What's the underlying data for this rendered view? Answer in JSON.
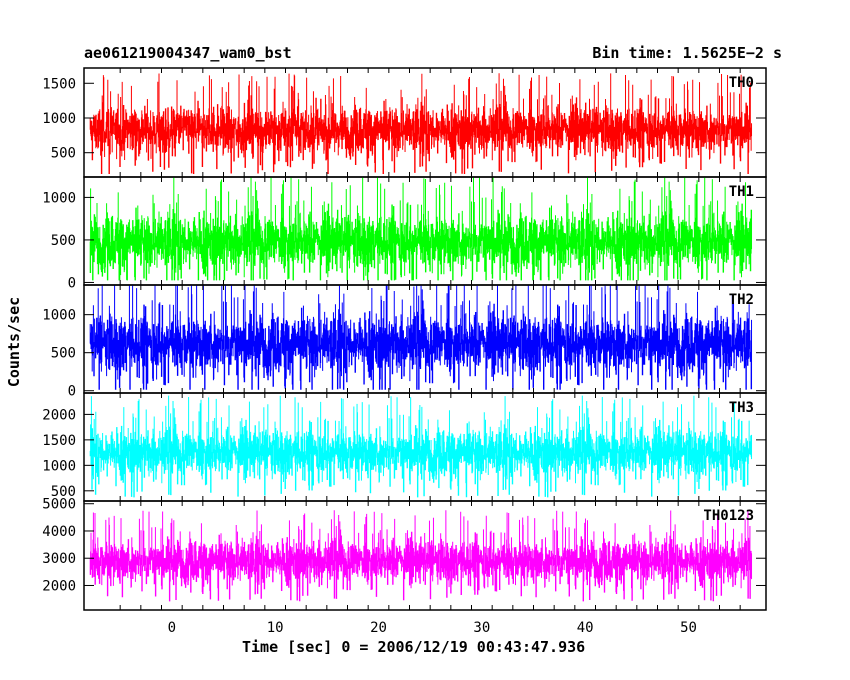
{
  "header": {
    "title": "ae061219004347_wam0_bst",
    "bin_time": "Bin time: 1.5625E−2 s"
  },
  "axes": {
    "xlabel": "Time [sec] 0 = 2006/12/19 00:43:47.936",
    "ylabel": "Counts/sec"
  },
  "chart_data": {
    "type": "line",
    "title": "ae061219004347_wam0_bst",
    "subtitle": "Bin time: 1.5625E−2 s",
    "xlabel": "Time [sec] 0 = 2006/12/19 00:43:47.936",
    "ylabel": "Counts/sec",
    "xlim": [
      -8.5,
      57.5
    ],
    "x_range_data": [
      -7.9,
      56.1
    ],
    "x_ticks": [
      0,
      10,
      20,
      30,
      40,
      50
    ],
    "grid": false,
    "panels": [
      {
        "name": "TH0",
        "color": "#ff0000",
        "ylim": [
          150,
          1720
        ],
        "yticks": [
          500,
          1000,
          1500
        ],
        "mean": 830,
        "noise": 240,
        "min_value": 200,
        "max_value": 1720
      },
      {
        "name": "TH1",
        "color": "#00ff00",
        "ylim": [
          -30,
          1240
        ],
        "yticks": [
          0,
          500,
          1000
        ],
        "mean": 480,
        "noise": 230,
        "min_value": 30,
        "max_value": 1240
      },
      {
        "name": "TH2",
        "color": "#0000ff",
        "ylim": [
          -30,
          1390
        ],
        "yticks": [
          0,
          500,
          1000
        ],
        "mean": 620,
        "noise": 270,
        "min_value": 20,
        "max_value": 1390
      },
      {
        "name": "TH3",
        "color": "#00ffff",
        "ylim": [
          300,
          2420
        ],
        "yticks": [
          500,
          1000,
          1500,
          2000
        ],
        "mean": 1250,
        "noise": 330,
        "min_value": 380,
        "max_value": 2420
      },
      {
        "name": "TH0123",
        "color": "#ff00ff",
        "ylim": [
          1100,
          5100
        ],
        "yticks": [
          2000,
          3000,
          4000,
          5000
        ],
        "mean": 2900,
        "noise": 550,
        "min_value": 1150,
        "max_value": 5100
      }
    ]
  }
}
